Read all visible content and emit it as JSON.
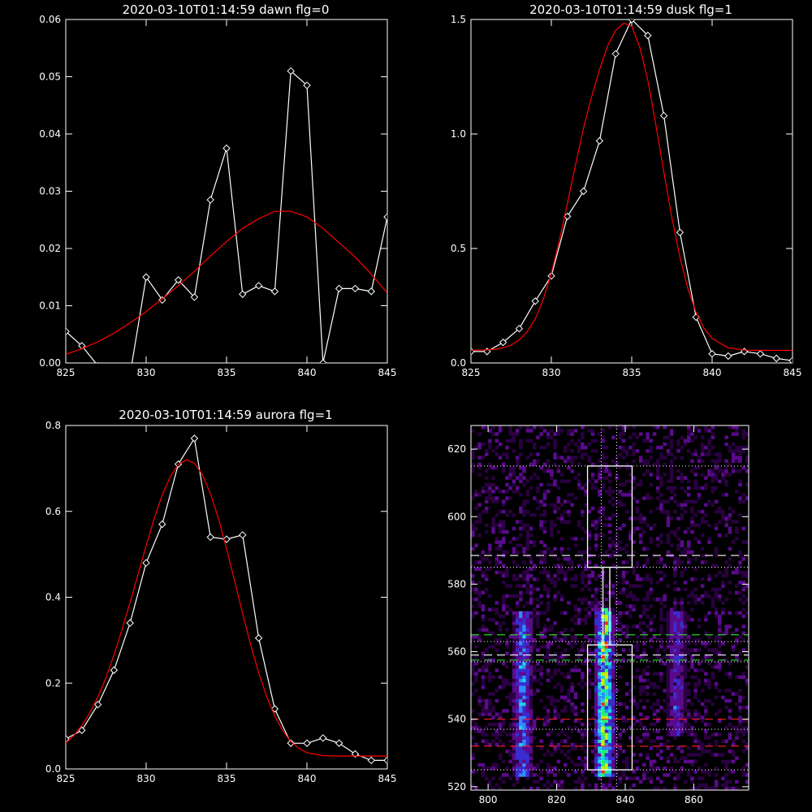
{
  "chart_data": [
    {
      "type": "line",
      "title": "2020-03-10T01:14:59 dawn flg=0",
      "xlim": [
        825,
        845
      ],
      "ylim": [
        0,
        0.06
      ],
      "xticks": [
        825,
        830,
        835,
        840,
        845
      ],
      "xtick_labels": [
        "825",
        "830",
        "835",
        "840",
        "845"
      ],
      "yticks": [
        0,
        0.01,
        0.02,
        0.03,
        0.04,
        0.05,
        0.06
      ],
      "ytick_labels": [
        "0.00",
        "0.01",
        "0.02",
        "0.03",
        "0.04",
        "0.05",
        "0.06"
      ],
      "series": [
        {
          "color": "#ffffff",
          "markers": "diamond",
          "x": [
            825,
            826,
            827,
            828,
            829,
            830,
            831,
            832,
            833,
            834,
            835,
            836,
            837,
            838,
            839,
            840,
            841,
            842,
            843,
            844,
            845
          ],
          "y": [
            0.0055,
            0.003,
            -0.0005,
            -0.0015,
            -0.002,
            0.015,
            0.011,
            0.0145,
            0.0115,
            0.0285,
            0.0375,
            0.012,
            0.0135,
            0.0125,
            0.051,
            0.0485,
            0.0,
            0.013,
            0.013,
            0.0125,
            0.0255
          ]
        },
        {
          "color": "#ff0000",
          "x": [
            825,
            826,
            827,
            828,
            829,
            830,
            831,
            832,
            833,
            834,
            835,
            836,
            837,
            838,
            839,
            840,
            841,
            842,
            843,
            844,
            845
          ],
          "y": [
            0.0015,
            0.0025,
            0.0037,
            0.0052,
            0.007,
            0.009,
            0.0112,
            0.0135,
            0.016,
            0.0187,
            0.0212,
            0.0235,
            0.0252,
            0.0265,
            0.0265,
            0.0255,
            0.0235,
            0.021,
            0.0185,
            0.0155,
            0.0122
          ]
        }
      ]
    },
    {
      "type": "line",
      "title": "2020-03-10T01:14:59 dusk flg=1",
      "xlim": [
        825,
        845
      ],
      "ylim": [
        0,
        1.5
      ],
      "xticks": [
        825,
        830,
        835,
        840,
        845
      ],
      "xtick_labels": [
        "825",
        "830",
        "835",
        "840",
        "845"
      ],
      "yticks": [
        0,
        0.5,
        1.0,
        1.5
      ],
      "ytick_labels": [
        "0.0",
        "0.5",
        "1.0",
        "1.5"
      ],
      "series": [
        {
          "color": "#ffffff",
          "markers": "diamond",
          "x": [
            825,
            826,
            827,
            828,
            829,
            830,
            831,
            832,
            833,
            834,
            835,
            836,
            837,
            838,
            839,
            840,
            841,
            842,
            843,
            844,
            845
          ],
          "y": [
            0.05,
            0.05,
            0.09,
            0.15,
            0.27,
            0.38,
            0.64,
            0.75,
            0.97,
            1.35,
            1.5,
            1.43,
            1.08,
            0.57,
            0.2,
            0.04,
            0.03,
            0.05,
            0.04,
            0.02,
            0.01
          ]
        },
        {
          "color": "#ff0000",
          "x": [
            825,
            825.5,
            826,
            826.5,
            827,
            827.5,
            828,
            828.5,
            829,
            829.5,
            830,
            830.5,
            831,
            831.5,
            832,
            832.5,
            833,
            833.5,
            834,
            834.5,
            835,
            835.5,
            836,
            836.5,
            837,
            837.5,
            838,
            838.5,
            839,
            839.5,
            840,
            841,
            842,
            843,
            844,
            845
          ],
          "y": [
            0.055,
            0.056,
            0.057,
            0.06,
            0.066,
            0.078,
            0.1,
            0.136,
            0.193,
            0.278,
            0.393,
            0.535,
            0.697,
            0.865,
            1.025,
            1.161,
            1.282,
            1.385,
            1.453,
            1.484,
            1.47,
            1.38,
            1.235,
            1.04,
            0.832,
            0.633,
            0.461,
            0.323,
            0.221,
            0.151,
            0.107,
            0.066,
            0.056,
            0.055,
            0.055,
            0.055
          ]
        }
      ]
    },
    {
      "type": "line",
      "title": "2020-03-10T01:14:59 aurora flg=1",
      "xlim": [
        825,
        845
      ],
      "ylim": [
        0,
        0.8
      ],
      "xticks": [
        825,
        830,
        835,
        840,
        845
      ],
      "xtick_labels": [
        "825",
        "830",
        "835",
        "840",
        "845"
      ],
      "yticks": [
        0,
        0.2,
        0.4,
        0.6,
        0.8
      ],
      "ytick_labels": [
        "0.0",
        "0.2",
        "0.4",
        "0.6",
        "0.8"
      ],
      "series": [
        {
          "color": "#ffffff",
          "markers": "diamond",
          "x": [
            825,
            826,
            827,
            828,
            829,
            830,
            831,
            832,
            833,
            834,
            835,
            836,
            837,
            838,
            839,
            840,
            841,
            842,
            843,
            844,
            845
          ],
          "y": [
            0.07,
            0.09,
            0.15,
            0.23,
            0.34,
            0.48,
            0.57,
            0.71,
            0.77,
            0.54,
            0.535,
            0.545,
            0.305,
            0.14,
            0.06,
            0.06,
            0.072,
            0.06,
            0.035,
            0.02,
            0.02
          ]
        },
        {
          "color": "#ff0000",
          "x": [
            825,
            825.5,
            826,
            826.5,
            827,
            827.5,
            828,
            828.5,
            829,
            829.5,
            830,
            830.5,
            831,
            831.5,
            832,
            832.5,
            833,
            833.5,
            834,
            834.5,
            835,
            835.5,
            836,
            836.5,
            837,
            837.5,
            838,
            838.5,
            839,
            839.5,
            840,
            841,
            842,
            843,
            844,
            845
          ],
          "y": [
            0.061,
            0.078,
            0.101,
            0.131,
            0.168,
            0.213,
            0.266,
            0.325,
            0.388,
            0.454,
            0.52,
            0.583,
            0.638,
            0.681,
            0.709,
            0.72,
            0.712,
            0.685,
            0.641,
            0.583,
            0.513,
            0.438,
            0.362,
            0.289,
            0.224,
            0.168,
            0.123,
            0.089,
            0.064,
            0.048,
            0.038,
            0.031,
            0.03,
            0.03,
            0.03,
            0.03
          ]
        }
      ]
    },
    {
      "type": "heatmap",
      "xlim": [
        795,
        876
      ],
      "ylim": [
        519,
        627
      ],
      "xticks": [
        800,
        820,
        840,
        860
      ],
      "xtick_labels": [
        "800",
        "820",
        "840",
        "860"
      ],
      "yticks": [
        520,
        540,
        560,
        580,
        600,
        620
      ],
      "ytick_labels": [
        "520",
        "540",
        "560",
        "580",
        "600",
        "620"
      ],
      "colormap": [
        "#2a0040",
        "#5a0a8c",
        "#3a2ccf",
        "#2f8cff",
        "#18d9e0",
        "#27f07a",
        "#c9f000",
        "#ff3000"
      ],
      "streaks": [
        {
          "x_center": 810,
          "y_range": [
            523,
            571
          ],
          "peak": 0.55
        },
        {
          "x_center": 834,
          "y_range": [
            523,
            572
          ],
          "peak": 1.0
        },
        {
          "x_center": 855,
          "y_range": [
            535,
            571
          ],
          "peak": 0.4
        }
      ],
      "boxes": [
        {
          "x_range": [
            829,
            842
          ],
          "y_range": [
            585,
            615
          ]
        },
        {
          "x_range": [
            829,
            842
          ],
          "y_range": [
            525,
            562
          ]
        }
      ],
      "connector_x": [
        833.5,
        835.5
      ],
      "vlines_dotted": [
        833,
        837.5
      ],
      "hlines_dotted": [
        615,
        585,
        563,
        557,
        537,
        525
      ],
      "hlines_dashed": [
        {
          "y": 588.5,
          "color": "#ffffff"
        },
        {
          "y": 559,
          "color": "#ffffff"
        },
        {
          "y": 565,
          "color": "#2ccf2c"
        },
        {
          "y": 557.5,
          "color": "#2ccf2c"
        },
        {
          "y": 540,
          "color": "#ff2020"
        },
        {
          "y": 532,
          "color": "#ff2020"
        }
      ]
    }
  ]
}
